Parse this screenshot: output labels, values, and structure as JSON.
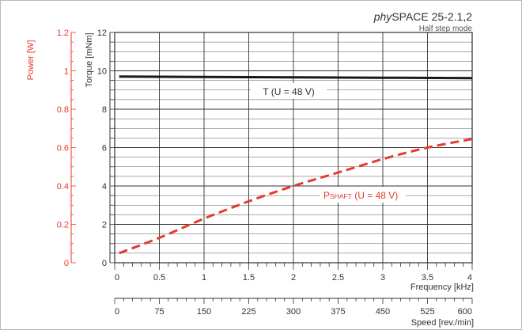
{
  "chart_data": {
    "type": "line",
    "title": {
      "italic": "phy",
      "main": "SPACE 25-2.1,2",
      "subtitle": "Half step mode"
    },
    "xaxes": [
      {
        "label": "Frequency [kHz]",
        "range": [
          0,
          4
        ],
        "ticks": [
          "0",
          "0.5",
          "1",
          "1.5",
          "2",
          "2.5",
          "3",
          "3.5",
          "4"
        ]
      },
      {
        "label": "Speed [rev./min]",
        "range": [
          0,
          600
        ],
        "ticks": [
          "0",
          "75",
          "150",
          "225",
          "300",
          "375",
          "450",
          "525",
          "600"
        ]
      }
    ],
    "yaxes": [
      {
        "label": "Power [W]",
        "color": "#e63a2e",
        "range": [
          0,
          1.2
        ],
        "ticks": [
          "0",
          "0.2",
          "0.4",
          "0.6",
          "0.8",
          "1",
          "1.2"
        ]
      },
      {
        "label": "Torque [mNm]",
        "color": "#333333",
        "range": [
          0,
          12
        ],
        "ticks": [
          "0",
          "2",
          "4",
          "6",
          "8",
          "10",
          "12"
        ]
      }
    ],
    "grid": true,
    "series": [
      {
        "name": "T (U = 48 V)",
        "axis": "torque",
        "color": "#1a1a1a",
        "style": "solid",
        "x": [
          0.05,
          1,
          2,
          3,
          4
        ],
        "y": [
          9.7,
          9.68,
          9.66,
          9.64,
          9.62
        ]
      },
      {
        "name_main": "P",
        "name_sub": "SHAFT",
        "name_rest": " (U = 48 V)",
        "axis": "power",
        "color": "#e63a2e",
        "style": "dashed",
        "x": [
          0.05,
          0.5,
          1,
          1.5,
          2,
          2.5,
          3,
          3.5,
          4
        ],
        "y": [
          0.05,
          0.13,
          0.23,
          0.32,
          0.4,
          0.47,
          0.54,
          0.6,
          0.645
        ]
      }
    ]
  }
}
